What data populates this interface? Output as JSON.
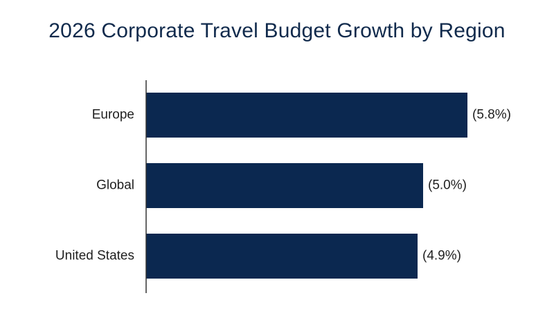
{
  "chart_data": {
    "type": "bar",
    "orientation": "horizontal",
    "title": "2026 Corporate Travel Budget Growth by Region",
    "categories": [
      "Europe",
      "Global",
      "United States"
    ],
    "values": [
      5.8,
      5.0,
      4.9
    ],
    "value_labels": [
      "(5.8%)",
      "(5.0%)",
      "(4.9%)"
    ],
    "xlabel": "",
    "ylabel": "",
    "xlim": [
      0,
      6.25
    ],
    "grid": false,
    "legend": "none",
    "bar_color": "#0b2850",
    "text_color": "#1f1f1f",
    "title_color": "#102a4c",
    "axis_color": "#333333"
  }
}
